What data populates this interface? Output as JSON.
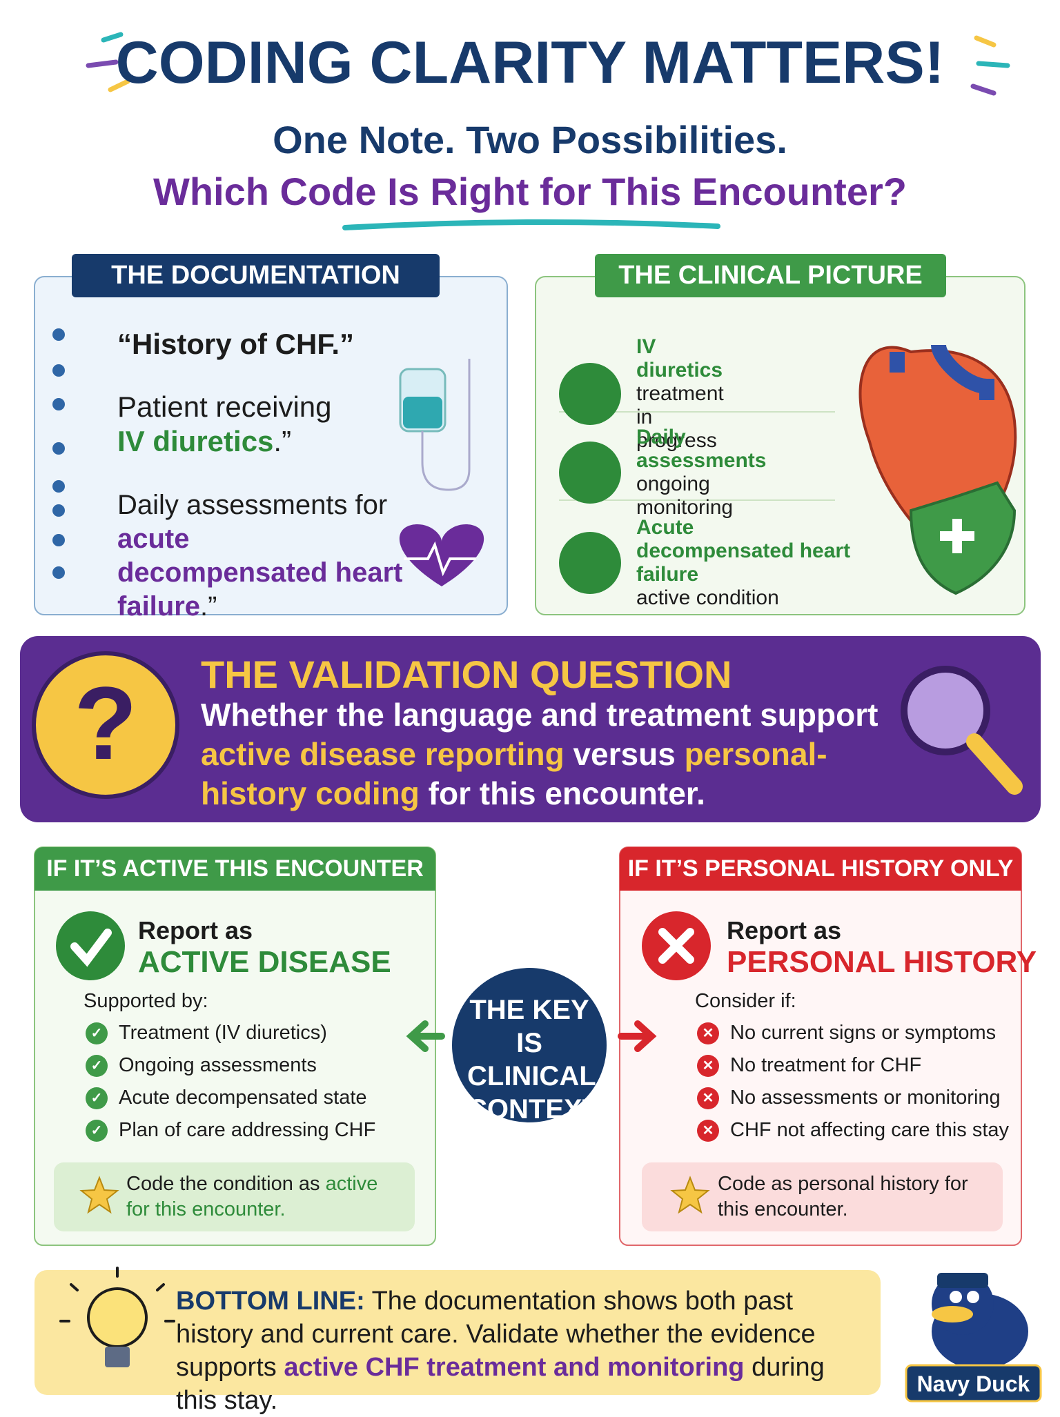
{
  "header": {
    "title": "CODING CLARITY MATTERS!",
    "subtitle": "One Note. Two Possibilities.",
    "question": "Which Code Is Right for This Encounter?"
  },
  "documentation": {
    "heading": "THE DOCUMENTATION",
    "quote1": "“History of CHF.”",
    "quote2": [
      "Patient receiving",
      "IV diuretics",
      ".”"
    ],
    "quote3": [
      "Daily assessments for",
      "acute decompensated heart failure",
      ".”"
    ]
  },
  "clinical": {
    "heading": "THE CLINICAL PICTURE",
    "items": [
      {
        "title": "IV diuretics",
        "detail": "treatment in progress"
      },
      {
        "title": "Daily assessments",
        "detail": "ongoing monitoring"
      },
      {
        "title": "Acute decompensated heart failure",
        "detail": "active condition"
      }
    ]
  },
  "validation": {
    "heading": "THE VALIDATION QUESTION",
    "text": [
      "Whether the language and treatment support ",
      "active disease reporting",
      " versus ",
      "personal-history coding",
      " for this encounter."
    ]
  },
  "active": {
    "header": "IF IT’S ACTIVE THIS ENCOUNTER",
    "report": "Report as",
    "label": "ACTIVE DISEASE",
    "lead": "Supported by:",
    "items": [
      "Treatment (IV diuretics)",
      "Ongoing assessments",
      "Acute decompensated state",
      "Plan of care addressing CHF"
    ],
    "note": [
      "Code the condition as ",
      "active for this encounter."
    ]
  },
  "history": {
    "header": "IF IT’S PERSONAL HISTORY ONLY",
    "report": "Report as",
    "label": "PERSONAL HISTORY",
    "lead": "Consider if:",
    "items": [
      "No current signs or symptoms",
      "No treatment for CHF",
      "No assessments or monitoring",
      "CHF not affecting care this stay"
    ],
    "note": "Code as personal history for this encounter."
  },
  "key": "THE KEY IS CLINICAL CONTEXT",
  "bottom": [
    "BOTTOM LINE:",
    " The documentation shows both past history and current care. Validate whether the evidence supports ",
    "active CHF treatment and monitoring",
    " during this stay."
  ],
  "mascot": "Navy Duck"
}
